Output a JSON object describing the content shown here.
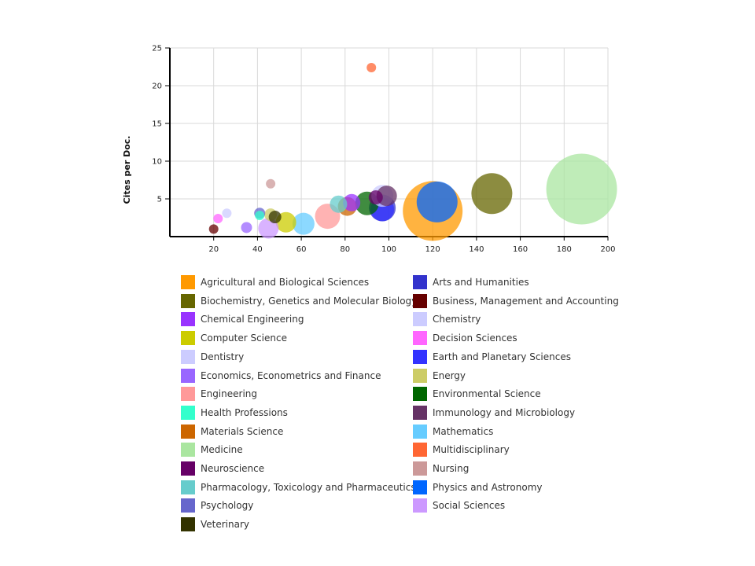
{
  "chart_data": {
    "type": "bubble",
    "title": "",
    "xlabel": "",
    "ylabel": "Cites per Doc.",
    "xlim": [
      0,
      200
    ],
    "ylim": [
      0,
      25
    ],
    "x_ticks": [
      20,
      40,
      60,
      80,
      100,
      120,
      140,
      160,
      180,
      200
    ],
    "y_ticks": [
      5,
      10,
      15,
      20,
      25
    ],
    "grid": true,
    "legend_position": "bottom",
    "series": [
      {
        "name": "Agricultural and Biological Sciences",
        "color": "#ff9900",
        "x": 120,
        "y": 3.4,
        "size": 38
      },
      {
        "name": "Arts and Humanities",
        "color": "#3333cc",
        "x": 97,
        "y": 3.8,
        "size": 17
      },
      {
        "name": "Biochemistry, Genetics and Molecular Biology",
        "color": "#666600",
        "x": 147,
        "y": 5.7,
        "size": 26
      },
      {
        "name": "Business, Management and Accounting",
        "color": "#660000",
        "x": 20,
        "y": 1.0,
        "size": 6
      },
      {
        "name": "Chemical Engineering",
        "color": "#9933ff",
        "x": 83,
        "y": 4.5,
        "size": 11
      },
      {
        "name": "Chemistry",
        "color": "#ccccff",
        "x": 97,
        "y": 5.4,
        "size": 14
      },
      {
        "name": "Computer Science",
        "color": "#cccc00",
        "x": 53,
        "y": 1.9,
        "size": 13
      },
      {
        "name": "Decision Sciences",
        "color": "#ff66ff",
        "x": 22,
        "y": 2.4,
        "size": 6
      },
      {
        "name": "Dentistry",
        "color": "#ccccff",
        "x": 26,
        "y": 3.1,
        "size": 6
      },
      {
        "name": "Earth and Planetary Sciences",
        "color": "#3333ff",
        "x": 97,
        "y": 3.6,
        "size": 15
      },
      {
        "name": "Economics, Econometrics and Finance",
        "color": "#9966ff",
        "x": 35,
        "y": 1.2,
        "size": 7
      },
      {
        "name": "Energy",
        "color": "#cccc66",
        "x": 46,
        "y": 2.9,
        "size": 8
      },
      {
        "name": "Engineering",
        "color": "#ff9999",
        "x": 72,
        "y": 2.7,
        "size": 16
      },
      {
        "name": "Environmental Science",
        "color": "#006600",
        "x": 90,
        "y": 4.4,
        "size": 15
      },
      {
        "name": "Health Professions",
        "color": "#33ffcc",
        "x": 41,
        "y": 2.8,
        "size": 6
      },
      {
        "name": "Immunology and Microbiology",
        "color": "#663366",
        "x": 99,
        "y": 5.4,
        "size": 13
      },
      {
        "name": "Materials Science",
        "color": "#cc6600",
        "x": 81,
        "y": 4.0,
        "size": 12
      },
      {
        "name": "Mathematics",
        "color": "#66ccff",
        "x": 61,
        "y": 1.7,
        "size": 14
      },
      {
        "name": "Medicine",
        "color": "#aae6a0",
        "x": 188,
        "y": 6.3,
        "size": 45
      },
      {
        "name": "Multidisciplinary",
        "color": "#ff6633",
        "x": 92,
        "y": 22.4,
        "size": 6
      },
      {
        "name": "Neuroscience",
        "color": "#660066",
        "x": 94,
        "y": 5.2,
        "size": 9
      },
      {
        "name": "Nursing",
        "color": "#cc9999",
        "x": 46,
        "y": 7.0,
        "size": 6
      },
      {
        "name": "Pharmacology, Toxicology and Pharmaceutics",
        "color": "#66cccc",
        "x": 77,
        "y": 4.3,
        "size": 11
      },
      {
        "name": "Physics and Astronomy",
        "color": "#0066ff",
        "x": 122,
        "y": 4.6,
        "size": 26
      },
      {
        "name": "Psychology",
        "color": "#6666cc",
        "x": 41,
        "y": 3.1,
        "size": 7
      },
      {
        "name": "Social Sciences",
        "color": "#cc99ff",
        "x": 45,
        "y": 1.1,
        "size": 13
      },
      {
        "name": "Veterinary",
        "color": "#333300",
        "x": 48,
        "y": 2.6,
        "size": 8
      }
    ]
  },
  "legend": {
    "items": [
      {
        "label": "Agricultural and Biological Sciences",
        "color": "#ff9900"
      },
      {
        "label": "Arts and Humanities",
        "color": "#3333cc"
      },
      {
        "label": "Biochemistry, Genetics and Molecular Biology",
        "color": "#666600"
      },
      {
        "label": "Business, Management and Accounting",
        "color": "#660000"
      },
      {
        "label": "Chemical Engineering",
        "color": "#9933ff"
      },
      {
        "label": "Chemistry",
        "color": "#ccccff"
      },
      {
        "label": "Computer Science",
        "color": "#cccc00"
      },
      {
        "label": "Decision Sciences",
        "color": "#ff66ff"
      },
      {
        "label": "Dentistry",
        "color": "#ccccff"
      },
      {
        "label": "Earth and Planetary Sciences",
        "color": "#3333ff"
      },
      {
        "label": "Economics, Econometrics and Finance",
        "color": "#9966ff"
      },
      {
        "label": "Energy",
        "color": "#cccc66"
      },
      {
        "label": "Engineering",
        "color": "#ff9999"
      },
      {
        "label": "Environmental Science",
        "color": "#006600"
      },
      {
        "label": "Health Professions",
        "color": "#33ffcc"
      },
      {
        "label": "Immunology and Microbiology",
        "color": "#663366"
      },
      {
        "label": "Materials Science",
        "color": "#cc6600"
      },
      {
        "label": "Mathematics",
        "color": "#66ccff"
      },
      {
        "label": "Medicine",
        "color": "#aae6a0"
      },
      {
        "label": "Multidisciplinary",
        "color": "#ff6633"
      },
      {
        "label": "Neuroscience",
        "color": "#660066"
      },
      {
        "label": "Nursing",
        "color": "#cc9999"
      },
      {
        "label": "Pharmacology, Toxicology and Pharmaceutics",
        "color": "#66cccc"
      },
      {
        "label": "Physics and Astronomy",
        "color": "#0066ff"
      },
      {
        "label": "Psychology",
        "color": "#6666cc"
      },
      {
        "label": "Social Sciences",
        "color": "#cc99ff"
      },
      {
        "label": "Veterinary",
        "color": "#333300"
      }
    ]
  }
}
